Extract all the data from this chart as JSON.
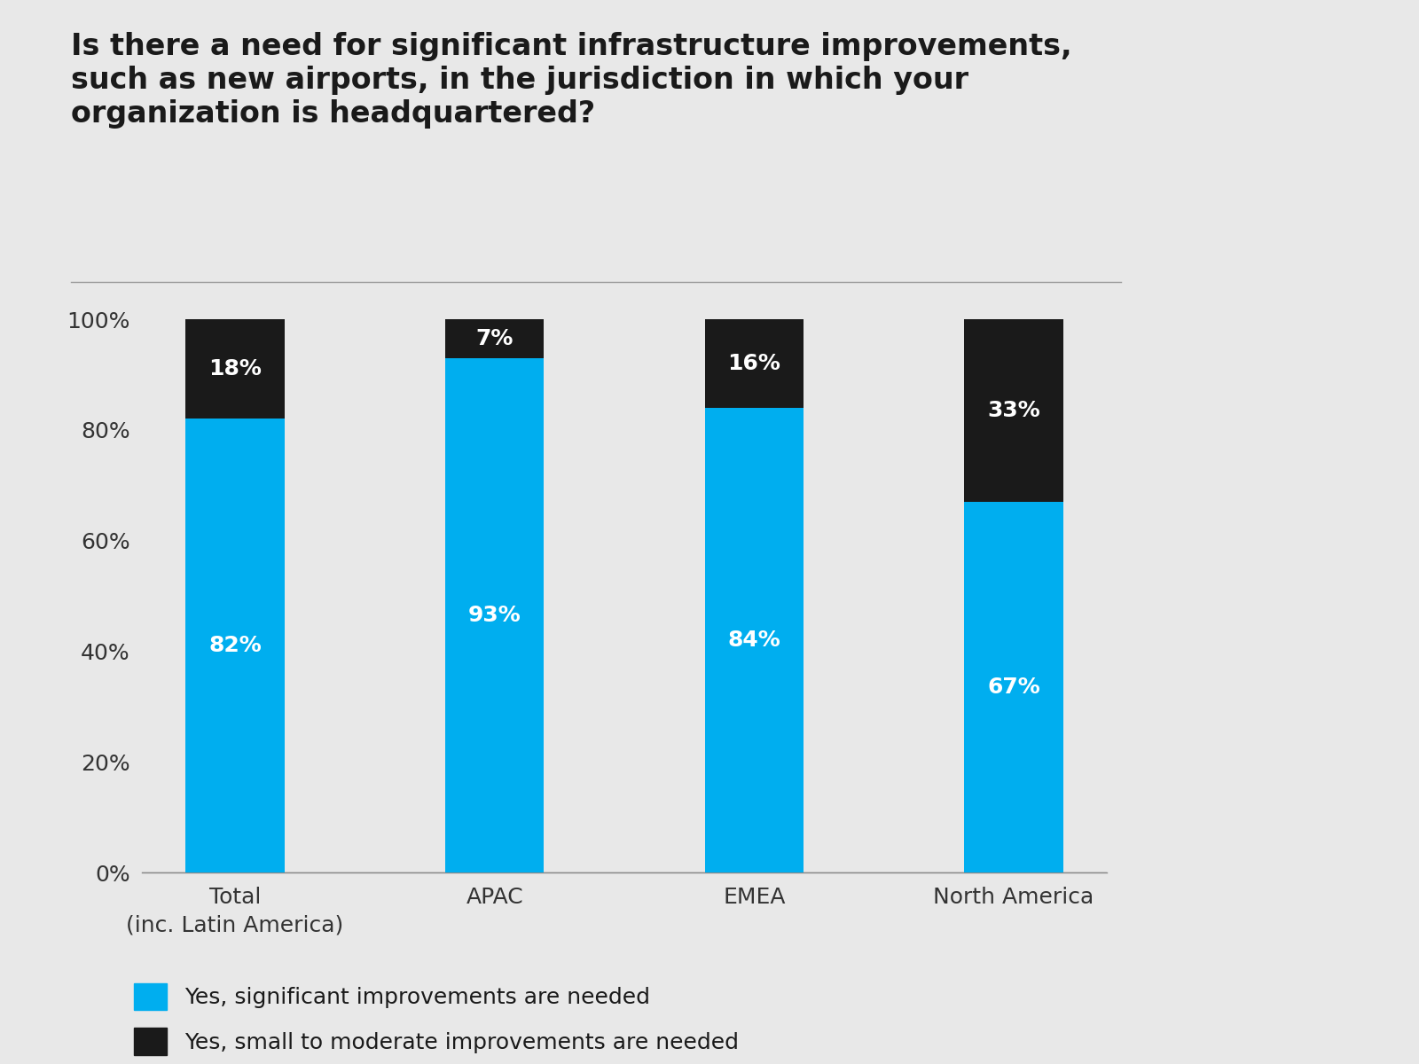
{
  "title": "Is there a need for significant infrastructure improvements,\nsuch as new airports, in the jurisdiction in which your\norganization is headquartered?",
  "categories": [
    "Total\n(inc. Latin America)",
    "APAC",
    "EMEA",
    "North America"
  ],
  "yes_significant": [
    82,
    93,
    84,
    67
  ],
  "yes_moderate": [
    18,
    7,
    16,
    33
  ],
  "color_significant": "#00AEEF",
  "color_moderate": "#1A1A1A",
  "background_color": "#E8E8E8",
  "bar_width": 0.38,
  "ylim": [
    0,
    100
  ],
  "yticks": [
    0,
    20,
    40,
    60,
    80,
    100
  ],
  "yticklabels": [
    "0%",
    "20%",
    "40%",
    "60%",
    "80%",
    "100%"
  ],
  "legend_labels": [
    "Yes, significant improvements are needed",
    "Yes, small to moderate improvements are needed"
  ],
  "title_fontsize": 24,
  "tick_fontsize": 18,
  "legend_fontsize": 18,
  "bar_label_fontsize": 18
}
